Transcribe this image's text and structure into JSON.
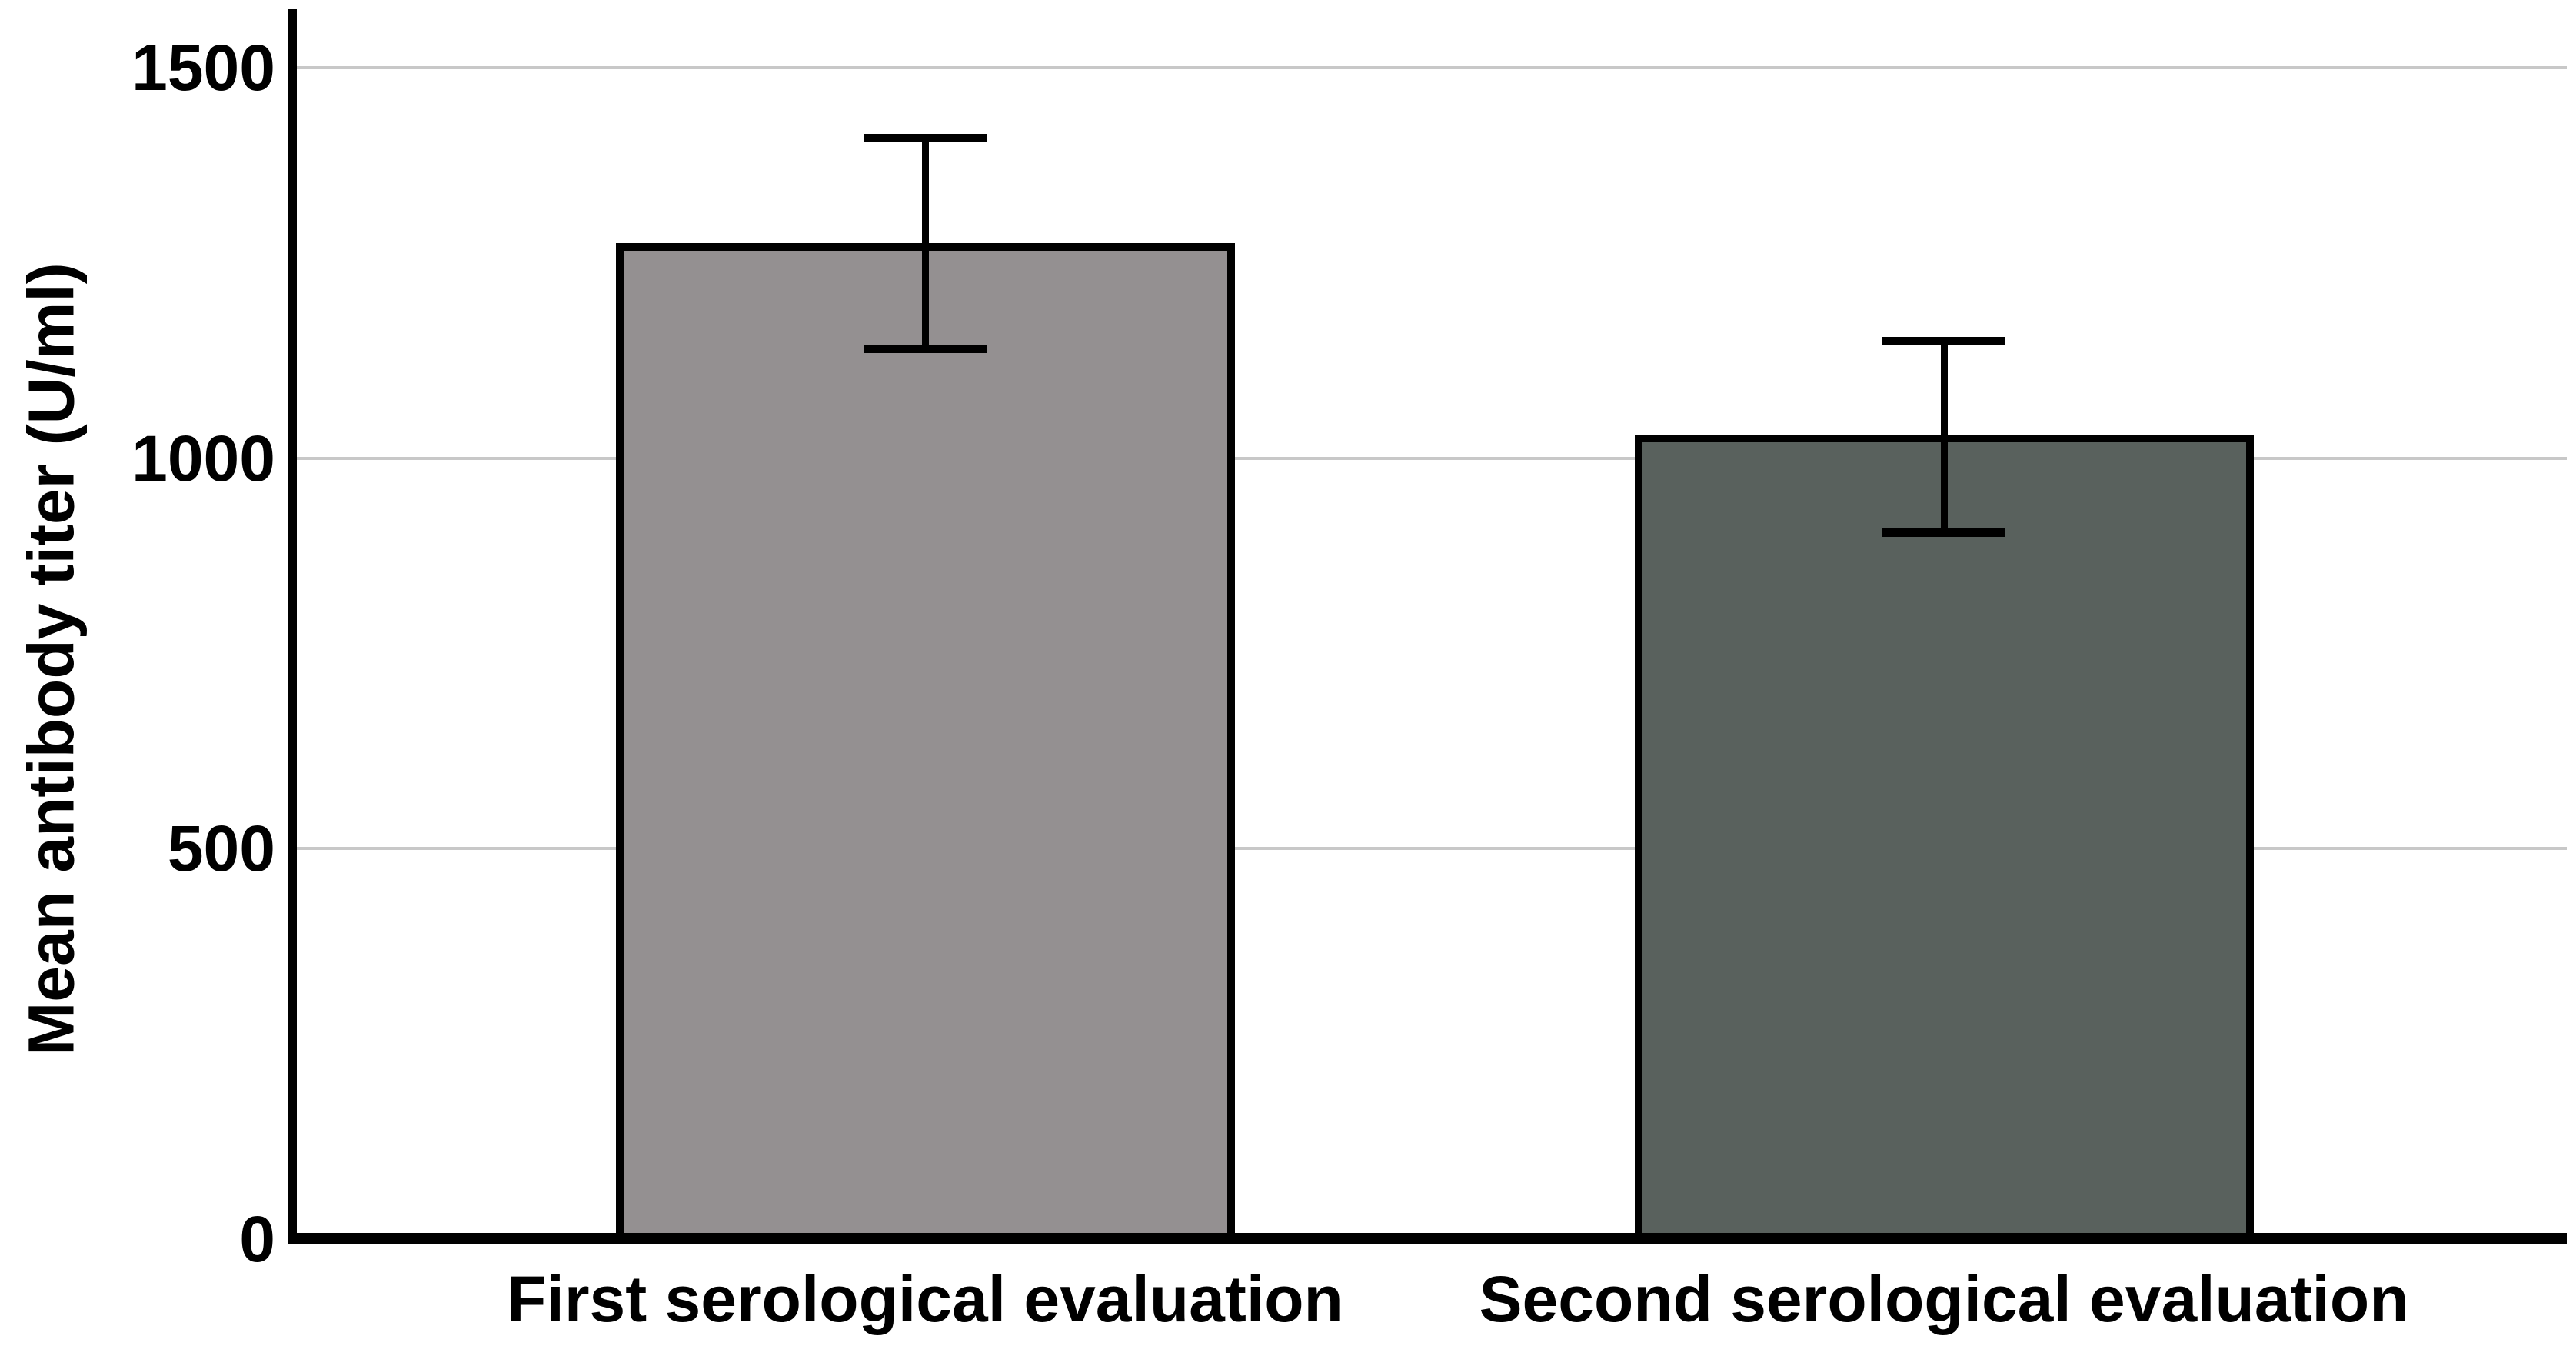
{
  "figure": {
    "background": "#ffffff"
  },
  "chart_data": {
    "type": "bar",
    "title": "",
    "ylabel": "Mean antibody titer (U/ml)",
    "xlabel": "",
    "categories": [
      "First serological evaluation",
      "Second serological evaluation"
    ],
    "values": [
      1275,
      1030
    ],
    "error_bars": [
      {
        "low": 1140,
        "high": 1410
      },
      {
        "low": 905,
        "high": 1150
      }
    ],
    "yticks": [
      0,
      500,
      1000,
      1500
    ],
    "ylim": [
      0,
      1575
    ],
    "grid": "horizontal",
    "legend": "none",
    "bar_colors": [
      "#949091",
      "#59615d"
    ],
    "bar_border_color": "#000000",
    "error_bar_color": "#000000",
    "gridline_color": "#c8c8c8",
    "axis_color": "#000000",
    "text_color": "#000000"
  }
}
